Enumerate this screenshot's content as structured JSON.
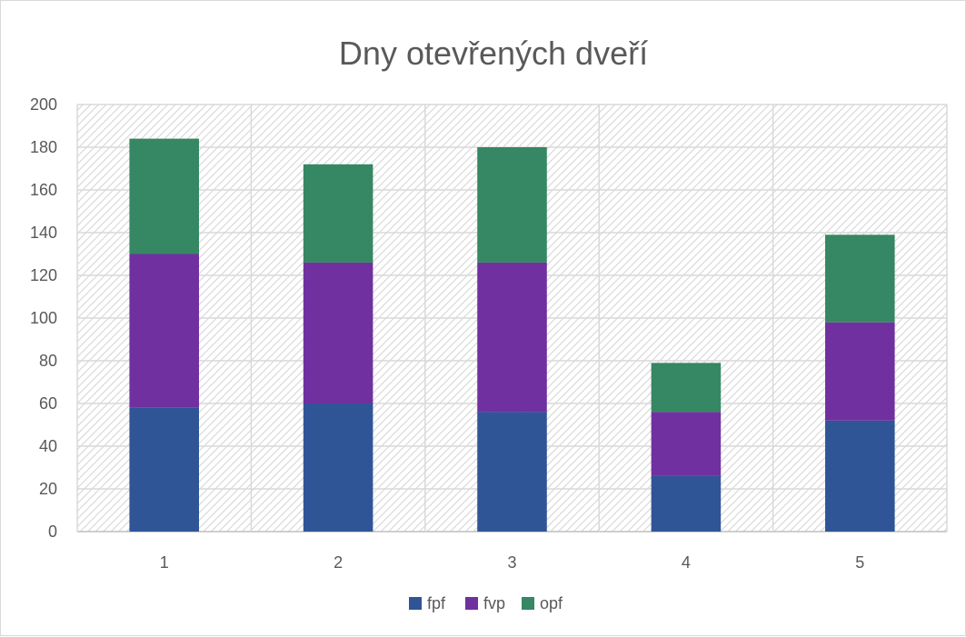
{
  "chart_data": {
    "type": "bar",
    "stacked": true,
    "title": "Dny otevřených dveří",
    "xlabel": "",
    "ylabel": "",
    "categories": [
      "1",
      "2",
      "3",
      "4",
      "5"
    ],
    "series": [
      {
        "name": "fpf",
        "color": "#2f5597",
        "values": [
          58,
          60,
          56,
          26,
          52
        ]
      },
      {
        "name": "fvp",
        "color": "#7030a0",
        "values": [
          72,
          66,
          70,
          30,
          46
        ]
      },
      {
        "name": "opf",
        "color": "#368763",
        "values": [
          54,
          46,
          54,
          23,
          41
        ]
      }
    ],
    "ylim": [
      0,
      200
    ],
    "yticks": [
      "0",
      "20",
      "40",
      "60",
      "80",
      "100",
      "120",
      "140",
      "160",
      "180",
      "200"
    ],
    "grid": true,
    "legend_position": "bottom"
  }
}
